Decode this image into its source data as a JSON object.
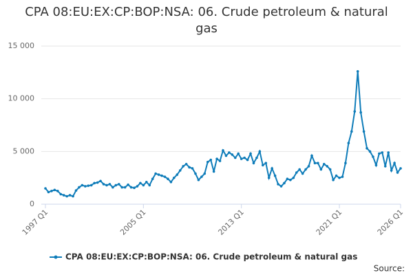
{
  "chart_data": {
    "type": "line",
    "title": "CPA 08:EU:EX:CP:BOP:NSA: 06. Crude petroleum & natural gas",
    "source": "Source:",
    "categories": [
      "1997 Q1",
      null,
      null,
      null,
      null,
      null,
      null,
      null,
      null,
      null,
      null,
      null,
      null,
      null,
      null,
      null,
      null,
      null,
      null,
      null,
      null,
      null,
      null,
      null,
      null,
      null,
      null,
      null,
      null,
      null,
      null,
      null,
      "2005 Q1",
      null,
      null,
      null,
      null,
      null,
      null,
      null,
      null,
      null,
      null,
      null,
      null,
      null,
      null,
      null,
      null,
      null,
      null,
      null,
      null,
      null,
      null,
      null,
      null,
      null,
      null,
      null,
      null,
      null,
      null,
      null,
      "2013 Q1",
      null,
      null,
      null,
      null,
      null,
      null,
      null,
      null,
      null,
      null,
      null,
      null,
      null,
      null,
      null,
      null,
      null,
      null,
      null,
      null,
      null,
      null,
      null,
      null,
      null,
      null,
      null,
      null,
      null,
      null,
      null,
      "2021 Q1",
      null,
      null,
      null,
      null,
      null,
      null,
      null,
      null,
      null,
      null,
      null,
      null,
      null,
      null,
      null,
      null,
      null,
      null,
      null,
      "2026 Q1"
    ],
    "series": [
      {
        "name": "CPA 08:EU:EX:CP:BOP:NSA: 06. Crude petroleum & natural gas",
        "color": "#0e7cb9",
        "values": [
          1500,
          1150,
          1250,
          1350,
          1250,
          950,
          850,
          750,
          850,
          750,
          1300,
          1600,
          1800,
          1700,
          1750,
          1800,
          2000,
          2050,
          2200,
          1900,
          1800,
          1900,
          1600,
          1800,
          1900,
          1600,
          1600,
          1850,
          1600,
          1550,
          1700,
          2000,
          1800,
          2100,
          1800,
          2400,
          2900,
          2800,
          2700,
          2600,
          2400,
          2100,
          2500,
          2800,
          3200,
          3600,
          3800,
          3500,
          3400,
          2900,
          2300,
          2600,
          2900,
          4000,
          4200,
          3100,
          4300,
          4100,
          5100,
          4600,
          4900,
          4700,
          4400,
          4800,
          4300,
          4400,
          4200,
          4800,
          3900,
          4400,
          5000,
          3700,
          3900,
          2500,
          3400,
          2700,
          1900,
          1700,
          2000,
          2400,
          2300,
          2500,
          3000,
          3300,
          2900,
          3300,
          3600,
          4600,
          3900,
          3900,
          3300,
          3800,
          3600,
          3300,
          2300,
          2700,
          2500,
          2600,
          3900,
          5800,
          6900,
          8800,
          12600,
          8700,
          6900,
          5300,
          5000,
          4500,
          3700,
          4800,
          4900,
          3600,
          4900,
          3200,
          3900,
          3000,
          3400
        ]
      }
    ],
    "ylim": [
      0,
      15000
    ],
    "yticks": [
      0,
      {
        "value": 5000,
        "label": "5 000"
      },
      {
        "value": 10000,
        "label": "10 000"
      },
      {
        "value": 15000,
        "label": "15 000"
      }
    ],
    "grid": true
  }
}
